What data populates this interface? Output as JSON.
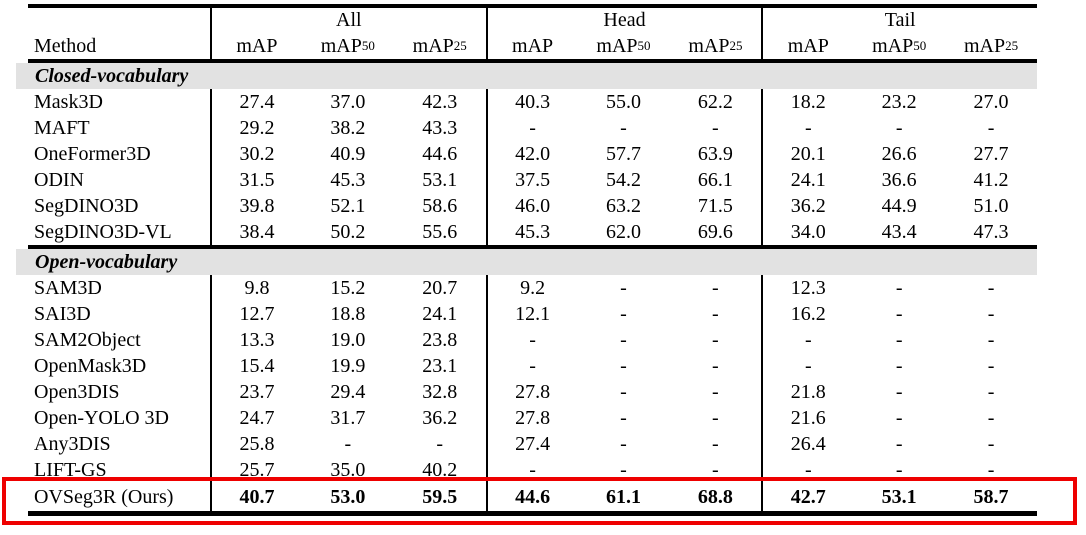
{
  "table": {
    "method_header": "Method",
    "groups": [
      {
        "label": "All"
      },
      {
        "label": "Head"
      },
      {
        "label": "Tail"
      }
    ],
    "metrics": [
      {
        "base": "mAP",
        "sub": ""
      },
      {
        "base": "mAP",
        "sub": "50"
      },
      {
        "base": "mAP",
        "sub": "25"
      }
    ],
    "sections": [
      {
        "label": "Closed-vocabulary",
        "rows": [
          {
            "method": "Mask3D",
            "values": [
              "27.4",
              "37.0",
              "42.3",
              "40.3",
              "55.0",
              "62.2",
              "18.2",
              "23.2",
              "27.0"
            ]
          },
          {
            "method": "MAFT",
            "values": [
              "29.2",
              "38.2",
              "43.3",
              "-",
              "-",
              "-",
              "-",
              "-",
              "-"
            ]
          },
          {
            "method": "OneFormer3D",
            "values": [
              "30.2",
              "40.9",
              "44.6",
              "42.0",
              "57.7",
              "63.9",
              "20.1",
              "26.6",
              "27.7"
            ]
          },
          {
            "method": "ODIN",
            "values": [
              "31.5",
              "45.3",
              "53.1",
              "37.5",
              "54.2",
              "66.1",
              "24.1",
              "36.6",
              "41.2"
            ]
          },
          {
            "method": "SegDINO3D",
            "values": [
              "39.8",
              "52.1",
              "58.6",
              "46.0",
              "63.2",
              "71.5",
              "36.2",
              "44.9",
              "51.0"
            ]
          },
          {
            "method": "SegDINO3D-VL",
            "values": [
              "38.4",
              "50.2",
              "55.6",
              "45.3",
              "62.0",
              "69.6",
              "34.0",
              "43.4",
              "47.3"
            ]
          }
        ]
      },
      {
        "label": "Open-vocabulary",
        "rows": [
          {
            "method": "SAM3D",
            "values": [
              "9.8",
              "15.2",
              "20.7",
              "9.2",
              "-",
              "-",
              "12.3",
              "-",
              "-"
            ]
          },
          {
            "method": "SAI3D",
            "values": [
              "12.7",
              "18.8",
              "24.1",
              "12.1",
              "-",
              "-",
              "16.2",
              "-",
              "-"
            ]
          },
          {
            "method": "SAM2Object",
            "values": [
              "13.3",
              "19.0",
              "23.8",
              "-",
              "-",
              "-",
              "-",
              "-",
              "-"
            ]
          },
          {
            "method": "OpenMask3D",
            "values": [
              "15.4",
              "19.9",
              "23.1",
              "-",
              "-",
              "-",
              "-",
              "-",
              "-"
            ]
          },
          {
            "method": "Open3DIS",
            "values": [
              "23.7",
              "29.4",
              "32.8",
              "27.8",
              "-",
              "-",
              "21.8",
              "-",
              "-"
            ]
          },
          {
            "method": "Open-YOLO 3D",
            "values": [
              "24.7",
              "31.7",
              "36.2",
              "27.8",
              "-",
              "-",
              "21.6",
              "-",
              "-"
            ]
          },
          {
            "method": "Any3DIS",
            "values": [
              "25.8",
              "-",
              "-",
              "27.4",
              "-",
              "-",
              "26.4",
              "-",
              "-"
            ]
          },
          {
            "method": "LIFT-GS",
            "values": [
              "25.7",
              "35.0",
              "40.2",
              "-",
              "-",
              "-",
              "-",
              "-",
              "-"
            ]
          }
        ]
      }
    ],
    "highlight_row": {
      "method": "OVSeg3R (Ours)",
      "values": [
        "40.7",
        "53.0",
        "59.5",
        "44.6",
        "61.1",
        "68.8",
        "42.7",
        "53.1",
        "58.7"
      ]
    }
  },
  "colors": {
    "section_band": "#e2e2e2",
    "highlight_border": "#ee0000",
    "rule": "#000000"
  }
}
